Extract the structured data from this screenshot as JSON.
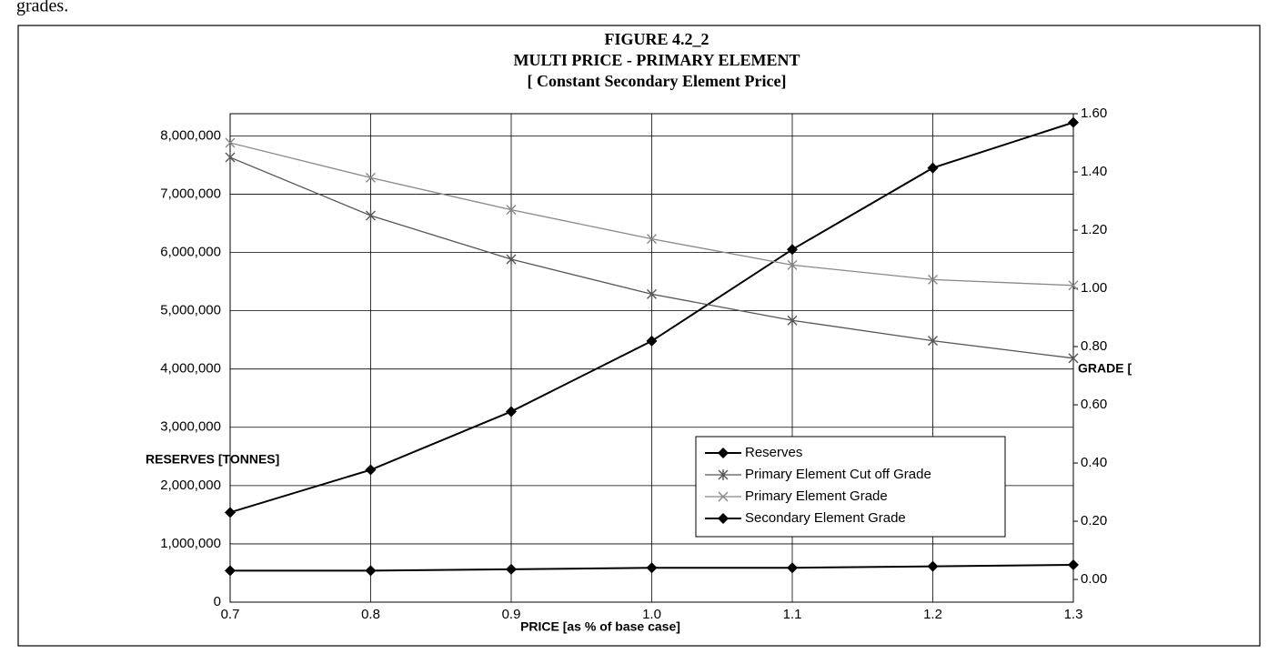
{
  "page_text": "grades.",
  "chart_data": {
    "type": "line",
    "title": "FIGURE 4.2_2",
    "subtitle": "MULTI PRICE - PRIMARY ELEMENT",
    "subtitle2": "[ Constant  Secondary Element Price]",
    "x_label": "PRICE [as % of base case]",
    "y_label": "RESERVES [TONNES]",
    "y2_label": "GRADE [",
    "x": [
      0.7,
      0.8,
      0.9,
      1.0,
      1.1,
      1.2,
      1.3
    ],
    "xlim": [
      0.7,
      1.3
    ],
    "xticks": [
      0.7,
      0.8,
      0.9,
      {
        "value": 1,
        "label": "1.0"
      },
      1.1,
      1.2,
      1.3
    ],
    "ylim": [
      0,
      8380000
    ],
    "yticks": [
      0,
      {
        "value": 1000000,
        "label": "1,000,000"
      },
      {
        "value": 2000000,
        "label": "2,000,000"
      },
      {
        "value": 3000000,
        "label": "3,000,000"
      },
      {
        "value": 4000000,
        "label": "4,000,000"
      },
      {
        "value": 5000000,
        "label": "5,000,000"
      },
      {
        "value": 6000000,
        "label": "6,000,000"
      },
      {
        "value": 7000000,
        "label": "7,000,000"
      },
      {
        "value": 8000000,
        "label": "8,000,000"
      }
    ],
    "y2lim": [
      -0.078,
      1.6
    ],
    "y2ticks": [
      {
        "value": 0,
        "label": "0.00"
      },
      {
        "value": 0.2,
        "label": "0.20"
      },
      {
        "value": 0.4,
        "label": "0.40"
      },
      {
        "value": 0.6,
        "label": "0.60"
      },
      {
        "value": 0.8,
        "label": "0.80"
      },
      {
        "value": 1,
        "label": "1.00"
      },
      {
        "value": 1.2,
        "label": "1.20"
      },
      {
        "value": 1.4,
        "label": "1.40"
      },
      {
        "value": 1.6,
        "label": "1.60"
      }
    ],
    "grid": true,
    "legend": "lower right",
    "series": [
      {
        "name": "Reserves",
        "color": "#000000",
        "marker": "diamond",
        "values": [
          1540000,
          2270000,
          3270000,
          4480000,
          6050000,
          7450000,
          8230000
        ]
      },
      {
        "name": "Primary Element Cut off Grade",
        "color": "#555555",
        "marker": "asterisk",
        "axis": "y2",
        "values": [
          1.45,
          1.25,
          1.1,
          0.98,
          0.89,
          0.82,
          0.76
        ]
      },
      {
        "name": "Primary Element Grade",
        "color": "#888888",
        "marker": "x",
        "axis": "y2",
        "values": [
          1.5,
          1.38,
          1.27,
          1.17,
          1.08,
          1.03,
          1.01
        ]
      },
      {
        "name": "Secondary Element Grade",
        "color": "#000000",
        "marker": "diamond",
        "axis": "y2",
        "values": [
          0.03,
          0.03,
          0.035,
          0.04,
          0.04,
          0.045,
          0.05
        ]
      }
    ]
  }
}
